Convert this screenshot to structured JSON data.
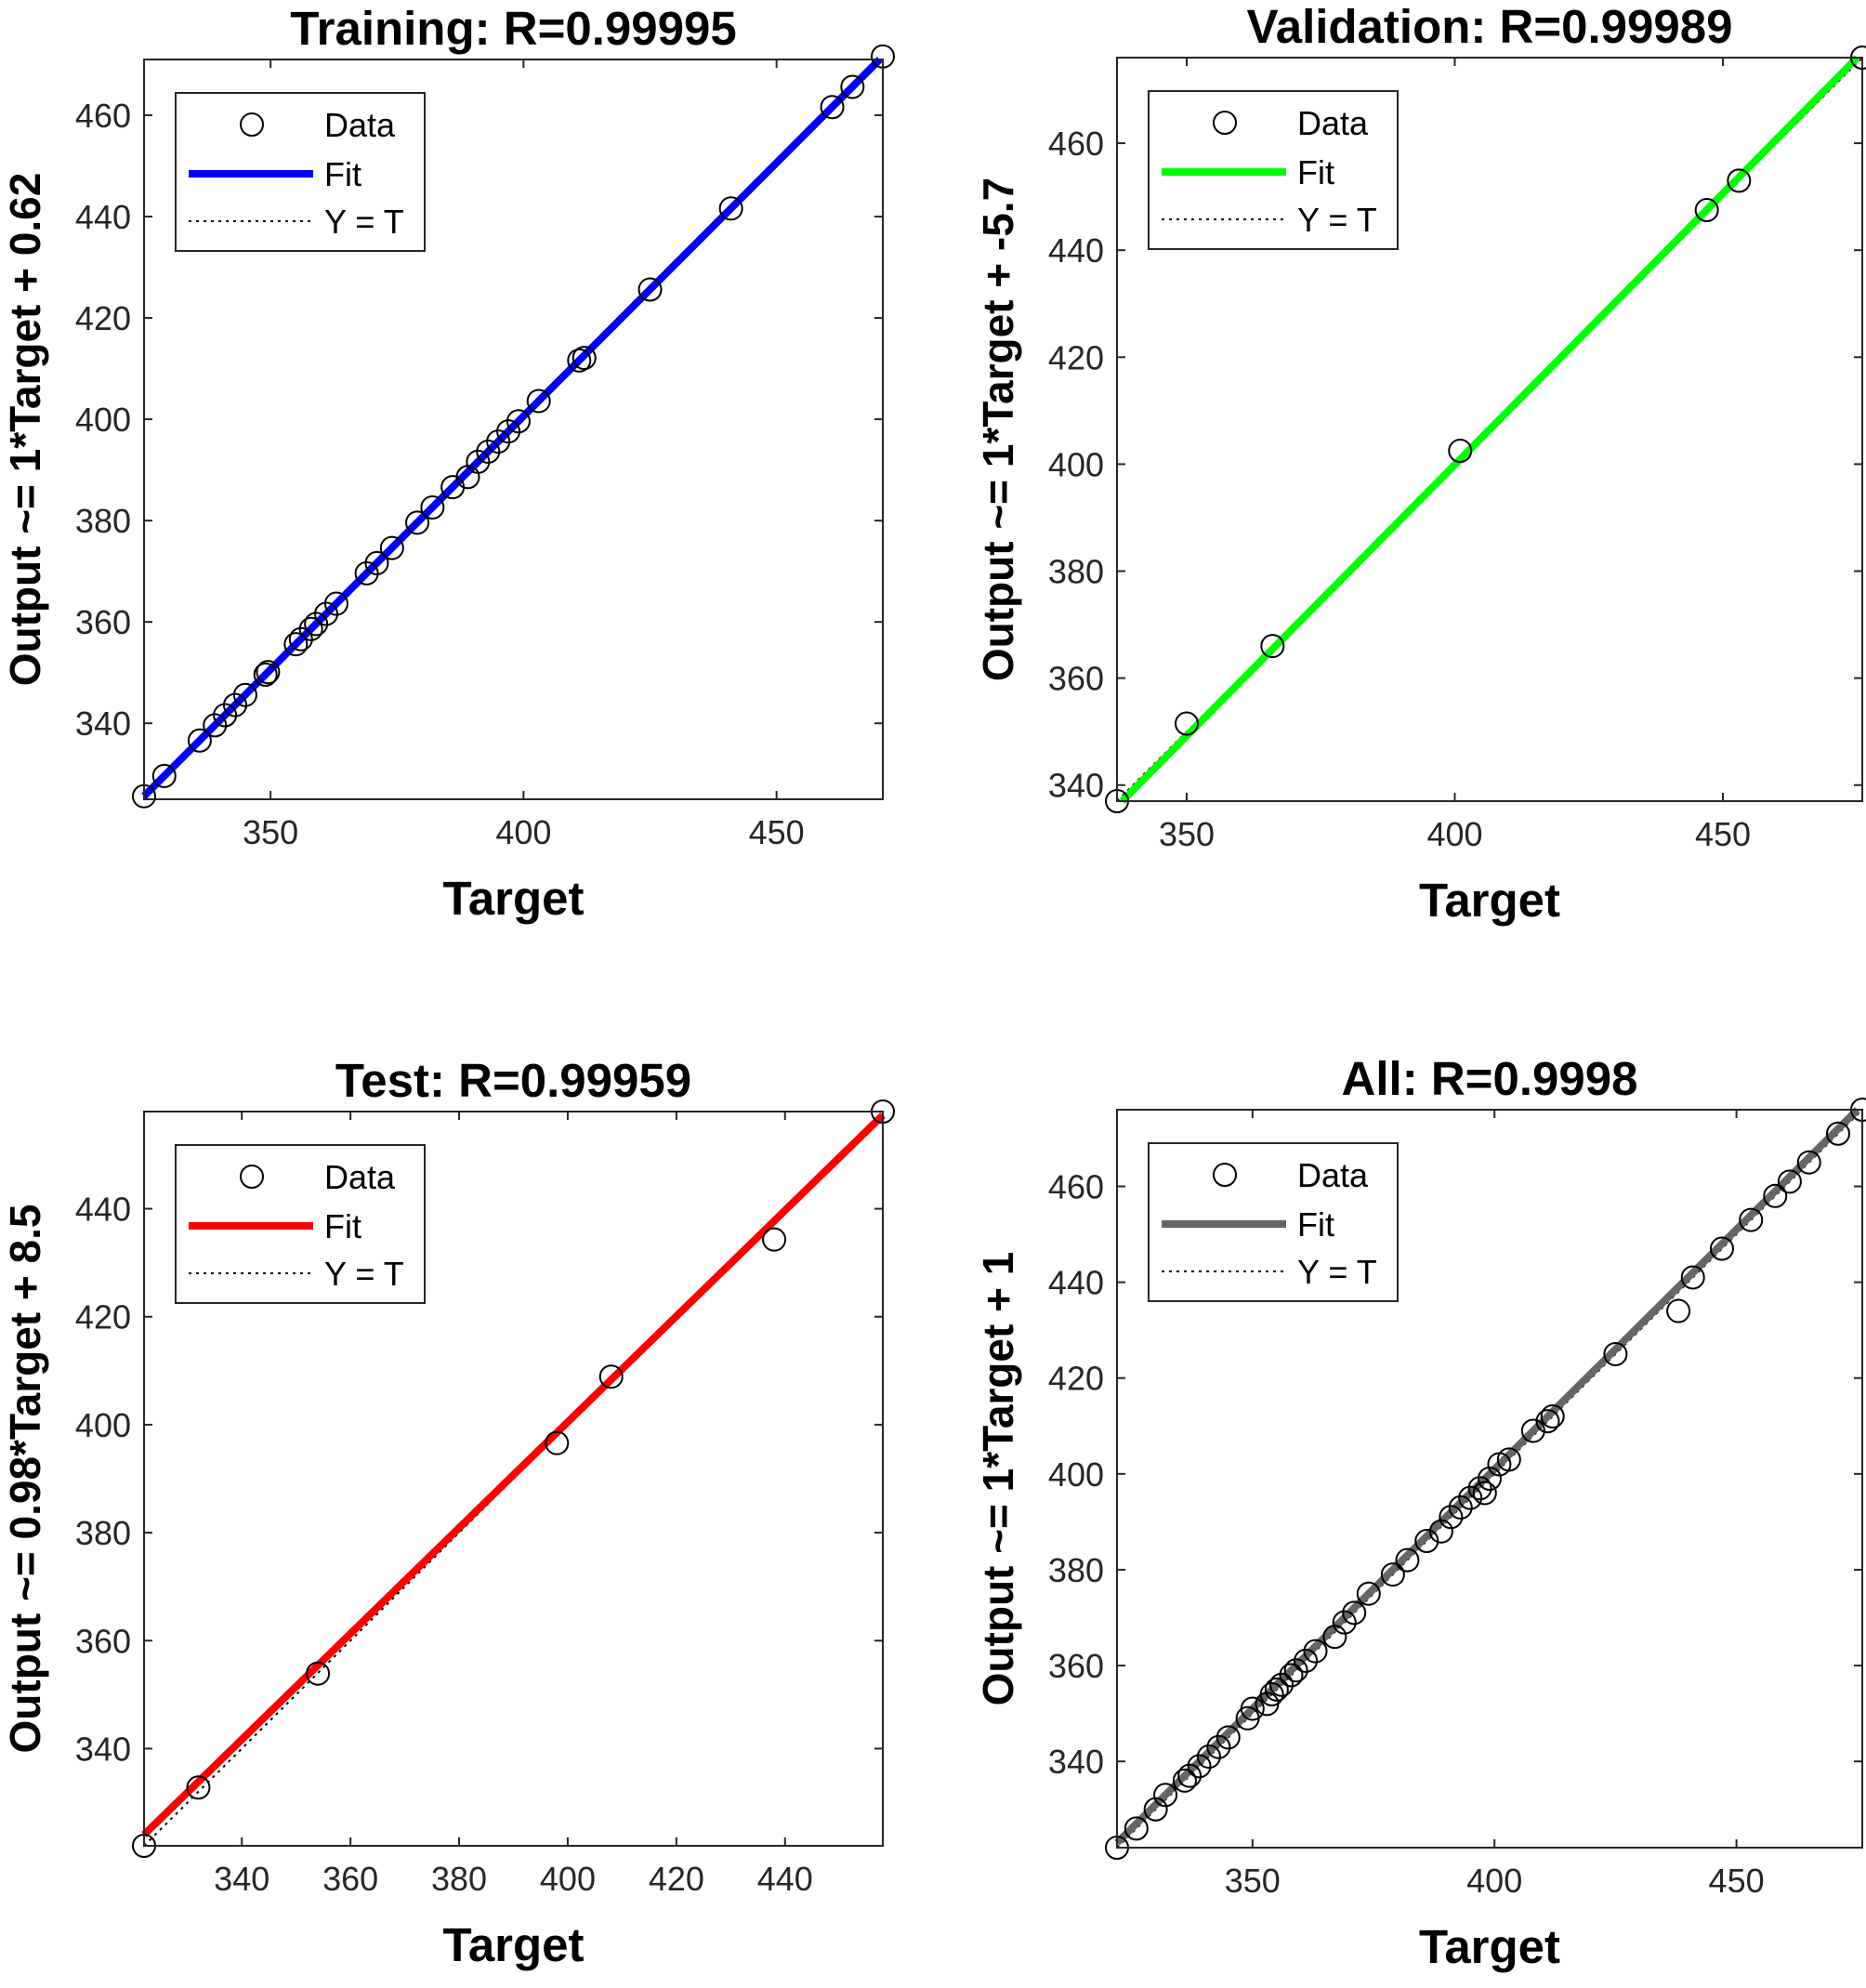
{
  "chart_data": [
    {
      "type": "scatter",
      "title": "Training: R=0.99995",
      "xlabel": "Target",
      "ylabel": "Output ~= 1*Target + 0.62",
      "xlim": [
        325,
        471
      ],
      "ylim": [
        325,
        471
      ],
      "xticks": [
        350,
        400,
        450
      ],
      "yticks": [
        340,
        360,
        380,
        400,
        420,
        440,
        460
      ],
      "fit_color": "#0000ff",
      "fit": {
        "slope": 1,
        "intercept": 0.62
      },
      "legend": {
        "position": "top-left",
        "entries": [
          "Data",
          "Fit",
          "Y = T"
        ]
      },
      "points": {
        "x": [
          325,
          329,
          336,
          339,
          341,
          343,
          345,
          349,
          349.5,
          355,
          356,
          358,
          359,
          361,
          363,
          369,
          371,
          374,
          379,
          382,
          386,
          389,
          391,
          393,
          395,
          397,
          399,
          403,
          411,
          412,
          425,
          441,
          461,
          465,
          471
        ],
        "y": [
          325.6,
          329.6,
          336.6,
          339.6,
          341.6,
          343.6,
          345.6,
          349.6,
          350.1,
          355.6,
          356.6,
          358.6,
          359.6,
          361.6,
          363.6,
          369.6,
          371.6,
          374.6,
          379.6,
          382.6,
          386.6,
          388.6,
          391.6,
          393.6,
          395.6,
          397.6,
          399.6,
          403.6,
          411.6,
          412.1,
          425.6,
          441.6,
          461.6,
          465.6,
          471.6
        ]
      }
    },
    {
      "type": "scatter",
      "title": "Validation: R=0.99989",
      "xlabel": "Target",
      "ylabel": "Output ~= 1*Target + -5.7",
      "xlim": [
        337,
        476
      ],
      "ylim": [
        337,
        476
      ],
      "xticks": [
        350,
        400,
        450
      ],
      "yticks": [
        340,
        360,
        380,
        400,
        420,
        440,
        460
      ],
      "fit_color": "#00ff00",
      "fit": {
        "slope": 1.014,
        "intercept": -5.7
      },
      "legend": {
        "position": "top-left",
        "entries": [
          "Data",
          "Fit",
          "Y = T"
        ]
      },
      "points": {
        "x": [
          337,
          350,
          366,
          401,
          447,
          453,
          476
        ],
        "y": [
          337,
          351.5,
          366,
          402.5,
          447.5,
          453,
          476
        ]
      }
    },
    {
      "type": "scatter",
      "title": "Test: R=0.99959",
      "xlabel": "Target",
      "ylabel": "Output ~= 0.98*Target + 8.5",
      "xlim": [
        322,
        458
      ],
      "ylim": [
        322,
        458
      ],
      "xticks": [
        340,
        360,
        380,
        400,
        420,
        440
      ],
      "yticks": [
        340,
        360,
        380,
        400,
        420,
        440
      ],
      "fit_color": "#ff0000",
      "fit": {
        "slope": 0.98,
        "intercept": 8.5
      },
      "legend": {
        "position": "top-left",
        "entries": [
          "Data",
          "Fit",
          "Y = T"
        ]
      },
      "points": {
        "x": [
          322,
          332,
          354,
          398,
          408,
          438,
          458
        ],
        "y": [
          322,
          332.8,
          353.9,
          396.6,
          408.9,
          434.3,
          458
        ]
      }
    },
    {
      "type": "scatter",
      "title": "All: R=0.9998",
      "xlabel": "Target",
      "ylabel": "Output ~= 1*Target + 1",
      "xlim": [
        322,
        476
      ],
      "ylim": [
        322,
        476
      ],
      "xticks": [
        350,
        400,
        450
      ],
      "yticks": [
        340,
        360,
        380,
        400,
        420,
        440,
        460
      ],
      "fit_color": "#666666",
      "fit": {
        "slope": 1,
        "intercept": 1
      },
      "legend": {
        "position": "top-left",
        "entries": [
          "Data",
          "Fit",
          "Y = T"
        ]
      },
      "points": {
        "x": [
          322,
          326,
          330,
          332,
          336,
          337,
          339,
          341,
          343,
          345,
          349,
          350,
          353,
          354,
          355,
          356,
          358,
          359,
          361,
          363,
          367,
          369,
          371,
          374,
          379,
          382,
          386,
          389,
          391,
          393,
          395,
          397,
          398,
          399,
          401,
          403,
          408,
          411,
          412,
          425,
          438,
          441,
          447,
          453,
          458,
          461,
          465,
          471,
          476
        ],
        "y": [
          322,
          326,
          330,
          333,
          336,
          337,
          339,
          341,
          343,
          345,
          349,
          351,
          352,
          354,
          355,
          356,
          358,
          359,
          361,
          363,
          366,
          369,
          371,
          375,
          379,
          382,
          386,
          388,
          391,
          393,
          395,
          397,
          396,
          399,
          402,
          403,
          409,
          411,
          412,
          425,
          434,
          441,
          447,
          453,
          458,
          461,
          465,
          471,
          476
        ]
      }
    }
  ]
}
